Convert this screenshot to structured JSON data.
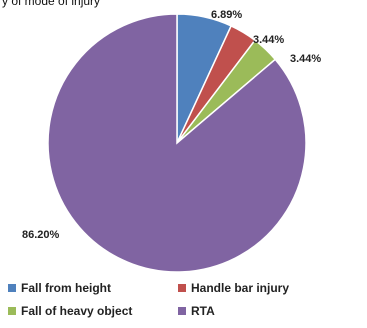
{
  "chart_data": {
    "type": "pie",
    "title": "y of mode of injury",
    "categories": [
      "Fall from height",
      "Handle bar injury",
      "Fall of heavy object",
      "RTA"
    ],
    "values": [
      6.89,
      3.44,
      3.44,
      86.2
    ],
    "labels": [
      "6.89%",
      "3.44%",
      "3.44%",
      "86.20%"
    ],
    "colors": [
      "#4f81bd",
      "#c0504d",
      "#9bbb59",
      "#8064a2"
    ],
    "start_angle_deg": 0,
    "direction": "clockwise",
    "legend_position": "bottom"
  }
}
